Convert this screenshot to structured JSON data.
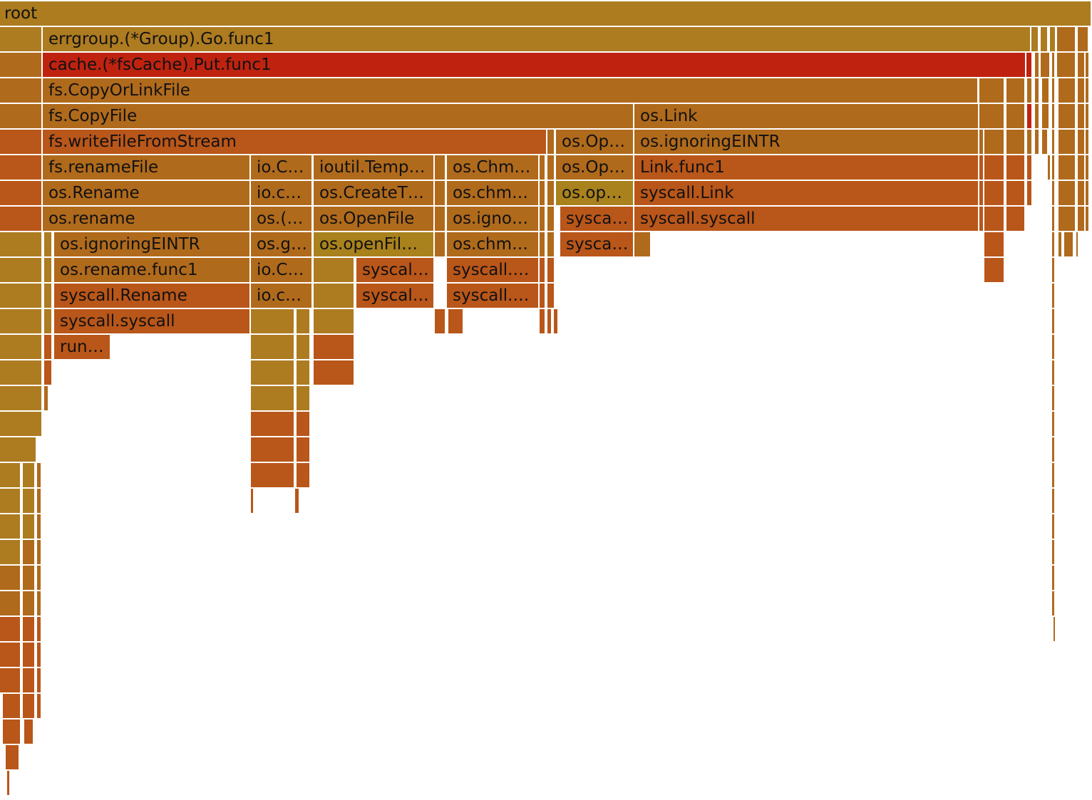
{
  "colors": {
    "root": "#ac7c1f",
    "gold": "#ad7b20",
    "amber": "#b06a1c",
    "orange": "#b95619",
    "red": "#bf2310",
    "olive": "#a9821d"
  },
  "frames": [
    {
      "depth": 0,
      "name": "root",
      "color": "root"
    },
    {
      "depth": 1,
      "name": "errgroup.(*Group).Go.func1",
      "color": "gold"
    },
    {
      "depth": 2,
      "name": "cache.(*fsCache).Put.func1",
      "color": "red"
    },
    {
      "depth": 3,
      "name": "fs.CopyOrLinkFile",
      "color": "amber"
    },
    {
      "depth": 4,
      "name": "fs.CopyFile",
      "color": "amber"
    },
    {
      "depth": 4,
      "name": "os.Link",
      "color": "amber"
    },
    {
      "depth": 5,
      "name": "fs.writeFileFromStream",
      "color": "orange"
    },
    {
      "depth": 5,
      "name": "os.Op…",
      "color": "amber"
    },
    {
      "depth": 5,
      "name": "os.ignoringEINTR",
      "color": "amber"
    },
    {
      "depth": 6,
      "name": "fs.renameFile",
      "color": "amber"
    },
    {
      "depth": 6,
      "name": "io.C…",
      "color": "amber"
    },
    {
      "depth": 6,
      "name": "ioutil.Temp…",
      "color": "amber"
    },
    {
      "depth": 6,
      "name": "os.Chm…",
      "color": "amber"
    },
    {
      "depth": 6,
      "name": "os.Op…",
      "color": "amber"
    },
    {
      "depth": 6,
      "name": "Link.func1",
      "color": "orange"
    },
    {
      "depth": 7,
      "name": "os.Rename",
      "color": "amber"
    },
    {
      "depth": 7,
      "name": "io.c…",
      "color": "amber"
    },
    {
      "depth": 7,
      "name": "os.CreateT…",
      "color": "amber"
    },
    {
      "depth": 7,
      "name": "os.chm…",
      "color": "amber"
    },
    {
      "depth": 7,
      "name": "os.op…",
      "color": "olive"
    },
    {
      "depth": 7,
      "name": "syscall.Link",
      "color": "orange"
    },
    {
      "depth": 8,
      "name": "os.rename",
      "color": "amber"
    },
    {
      "depth": 8,
      "name": "os.(…",
      "color": "amber"
    },
    {
      "depth": 8,
      "name": "os.OpenFile",
      "color": "amber"
    },
    {
      "depth": 8,
      "name": "os.igno…",
      "color": "amber"
    },
    {
      "depth": 8,
      "name": "sysca…",
      "color": "orange"
    },
    {
      "depth": 8,
      "name": "syscall.syscall",
      "color": "orange"
    },
    {
      "depth": 9,
      "name": "os.ignoringEINTR",
      "color": "amber"
    },
    {
      "depth": 9,
      "name": "os.g…",
      "color": "amber"
    },
    {
      "depth": 9,
      "name": "os.openFil…",
      "color": "olive"
    },
    {
      "depth": 9,
      "name": "os.chm…",
      "color": "amber"
    },
    {
      "depth": 9,
      "name": "sysca…",
      "color": "orange"
    },
    {
      "depth": 10,
      "name": "os.rename.func1",
      "color": "amber"
    },
    {
      "depth": 10,
      "name": "io.C…",
      "color": "amber"
    },
    {
      "depth": 10,
      "name": "syscal…",
      "color": "orange"
    },
    {
      "depth": 10,
      "name": "syscall.…",
      "color": "orange"
    },
    {
      "depth": 11,
      "name": "syscall.Rename",
      "color": "orange"
    },
    {
      "depth": 11,
      "name": "io.c…",
      "color": "amber"
    },
    {
      "depth": 11,
      "name": "syscal…",
      "color": "orange"
    },
    {
      "depth": 11,
      "name": "syscall.…",
      "color": "orange"
    },
    {
      "depth": 12,
      "name": "syscall.syscall",
      "color": "orange"
    },
    {
      "depth": 13,
      "name": "run…",
      "color": "orange"
    }
  ]
}
